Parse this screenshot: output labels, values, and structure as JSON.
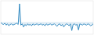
{
  "chart_data": {
    "type": "area",
    "values": [
      -1,
      -3,
      -4,
      -2,
      -5,
      -3,
      -6,
      -4,
      -3,
      -5,
      -4,
      -3,
      -2,
      -4,
      30,
      -5,
      -3,
      -8,
      -4,
      -6,
      -3,
      -5,
      -4,
      -6,
      -3,
      -5,
      -4,
      -3,
      -5,
      -4,
      -3,
      -5,
      -4,
      -6,
      -3,
      -5,
      -4,
      -3,
      -5,
      -4,
      -3,
      -5,
      -7,
      -4,
      -3,
      -6,
      -4,
      -8,
      -5,
      -3,
      -4,
      -6,
      -3,
      -14,
      -4,
      -3,
      -5,
      -4,
      -13,
      -3,
      -4,
      -5,
      -3,
      -4,
      -5,
      -3,
      -4,
      -6,
      -5,
      -3
    ],
    "color": "#3b8fc4",
    "ylim": [
      -20,
      35
    ],
    "tick_labels": false
  }
}
